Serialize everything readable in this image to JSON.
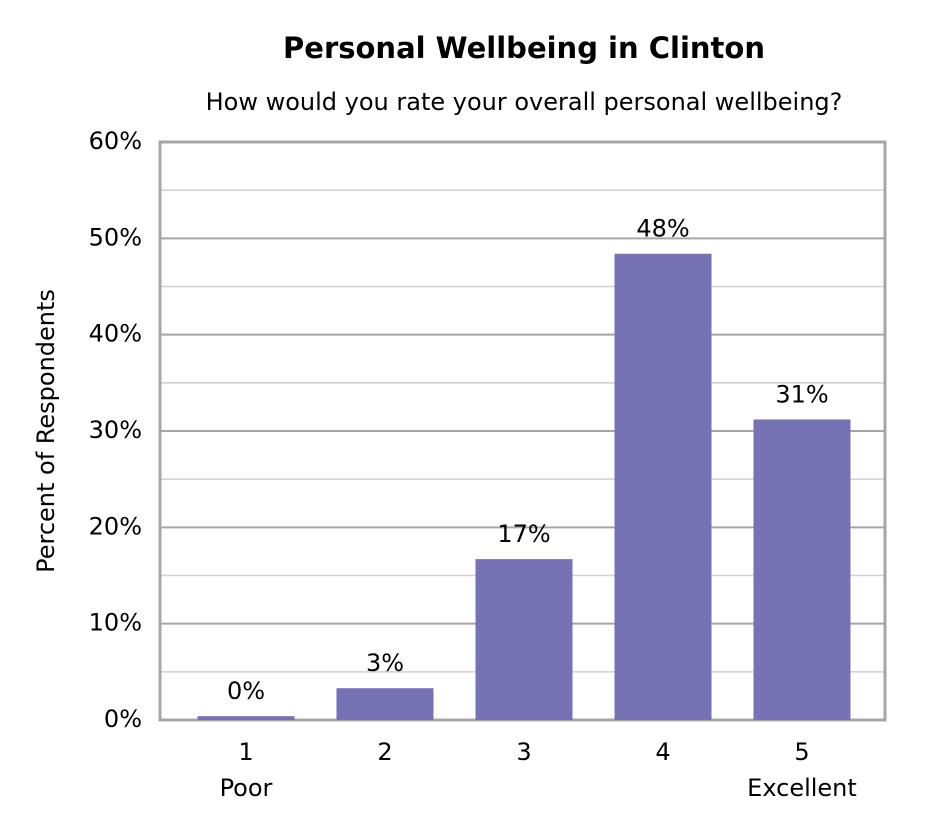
{
  "chart_data": {
    "type": "bar",
    "title": "Personal Wellbeing in Clinton",
    "subtitle": "How would you rate your overall personal wellbeing?",
    "y_label": "Percent of Respondents",
    "categories": [
      "1",
      "2",
      "3",
      "4",
      "5"
    ],
    "category_sublabels": [
      "Poor",
      null,
      null,
      null,
      "Excellent"
    ],
    "values": [
      0.4,
      3.3,
      16.7,
      48.4,
      31.2
    ],
    "value_labels": [
      "0%",
      "3%",
      "17%",
      "48%",
      "31%"
    ],
    "color": "#7672b4",
    "ylim": [
      0,
      60
    ],
    "yticks": [
      {
        "value": 0,
        "label": "0%"
      },
      {
        "value": 10,
        "label": "10%"
      },
      {
        "value": 20,
        "label": "20%"
      },
      {
        "value": 30,
        "label": "30%"
      },
      {
        "value": 40,
        "label": "40%"
      },
      {
        "value": 50,
        "label": "50%"
      },
      {
        "value": 60,
        "label": "60%"
      }
    ],
    "minor_yticks": [
      5,
      15,
      25,
      35,
      45,
      55
    ],
    "grid": true
  }
}
